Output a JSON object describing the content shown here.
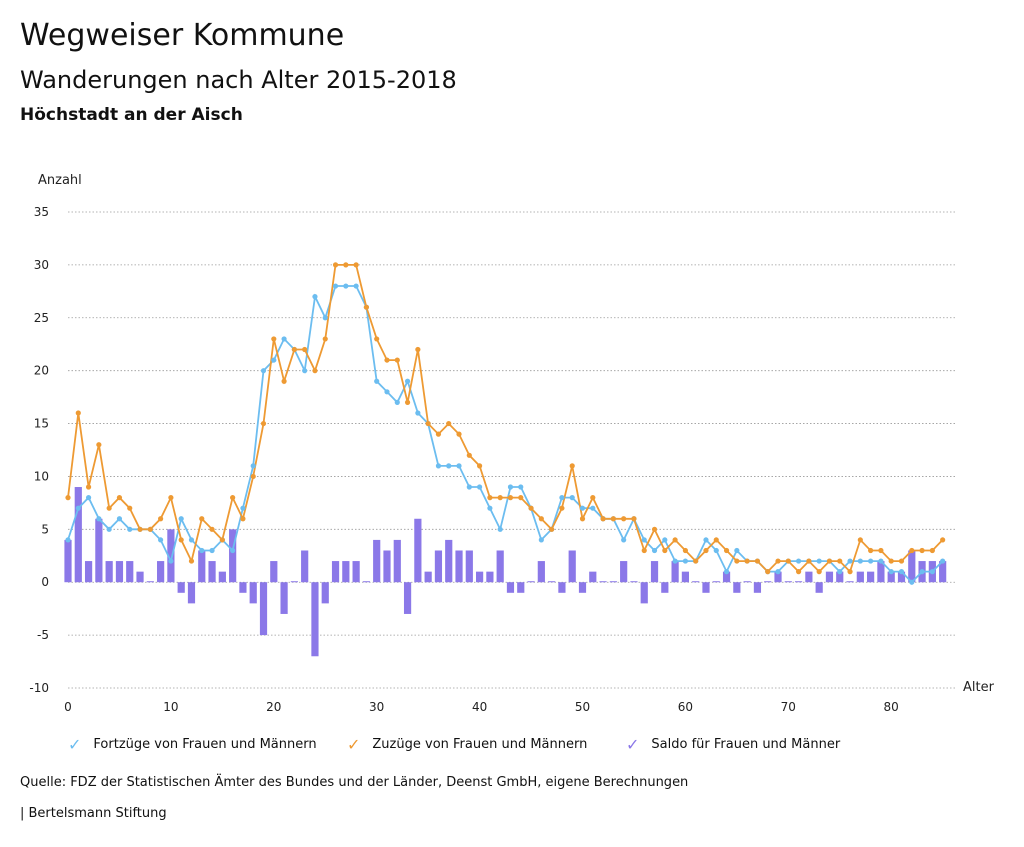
{
  "header": {
    "title": "Wegweiser Kommune",
    "subtitle": "Wanderungen nach Alter 2015-2018",
    "location": "Höchstadt an der Aisch"
  },
  "chart_data": {
    "type": "bar+line",
    "ylabel": "Anzahl",
    "xlabel": "Alter",
    "ylim": [
      -10,
      35
    ],
    "yticks": [
      -10,
      -5,
      0,
      5,
      10,
      15,
      20,
      25,
      30,
      35
    ],
    "xlim": [
      0,
      86
    ],
    "xticks": [
      0,
      10,
      20,
      30,
      40,
      50,
      60,
      70,
      80
    ],
    "x": [
      0,
      1,
      2,
      3,
      4,
      5,
      6,
      7,
      8,
      9,
      10,
      11,
      12,
      13,
      14,
      15,
      16,
      17,
      18,
      19,
      20,
      21,
      22,
      23,
      24,
      25,
      26,
      27,
      28,
      29,
      30,
      31,
      32,
      33,
      34,
      35,
      36,
      37,
      38,
      39,
      40,
      41,
      42,
      43,
      44,
      45,
      46,
      47,
      48,
      49,
      50,
      51,
      52,
      53,
      54,
      55,
      56,
      57,
      58,
      59,
      60,
      61,
      62,
      63,
      64,
      65,
      66,
      67,
      68,
      69,
      70,
      71,
      72,
      73,
      74,
      75,
      76,
      77,
      78,
      79,
      80,
      81,
      82,
      83,
      84,
      85
    ],
    "series": [
      {
        "name": "Fortzüge von Frauen und Männern",
        "type": "line",
        "color": "#6cbdf0",
        "values": [
          4,
          7,
          8,
          6,
          5,
          6,
          5,
          5,
          5,
          4,
          2,
          6,
          4,
          3,
          3,
          4,
          3,
          7,
          11,
          20,
          21,
          23,
          22,
          20,
          27,
          25,
          28,
          28,
          28,
          26,
          19,
          18,
          17,
          19,
          16,
          15,
          11,
          11,
          11,
          9,
          9,
          7,
          5,
          9,
          9,
          7,
          4,
          5,
          8,
          8,
          7,
          7,
          6,
          6,
          4,
          6,
          4,
          3,
          4,
          2,
          2,
          2,
          4,
          3,
          1,
          3,
          2,
          2,
          1,
          1,
          2,
          2,
          2,
          2,
          2,
          1,
          2,
          2,
          2,
          2,
          1,
          1,
          0,
          1,
          1,
          2
        ]
      },
      {
        "name": "Zuzüge von Frauen und Männern",
        "type": "line",
        "color": "#ee9a33",
        "values": [
          8,
          16,
          9,
          13,
          7,
          8,
          7,
          5,
          5,
          6,
          8,
          4,
          2,
          6,
          5,
          4,
          8,
          6,
          10,
          15,
          23,
          19,
          22,
          22,
          20,
          23,
          30,
          30,
          30,
          26,
          23,
          21,
          21,
          17,
          22,
          15,
          14,
          15,
          14,
          12,
          11,
          8,
          8,
          8,
          8,
          7,
          6,
          5,
          7,
          11,
          6,
          8,
          6,
          6,
          6,
          6,
          3,
          5,
          3,
          4,
          3,
          2,
          3,
          4,
          3,
          2,
          2,
          2,
          1,
          2,
          2,
          1,
          2,
          1,
          2,
          2,
          1,
          4,
          3,
          3,
          2,
          2,
          3,
          3,
          3,
          4
        ]
      },
      {
        "name": "Saldo für Frauen und Männer",
        "type": "bar",
        "color": "#8b78e8",
        "values": [
          4,
          9,
          2,
          6,
          2,
          2,
          2,
          1,
          0,
          2,
          5,
          -1,
          -2,
          3,
          2,
          1,
          5,
          -1,
          -2,
          -5,
          2,
          -3,
          0,
          3,
          -7,
          -2,
          2,
          2,
          2,
          0,
          4,
          3,
          4,
          -3,
          6,
          1,
          3,
          4,
          3,
          3,
          1,
          1,
          3,
          -1,
          -1,
          0,
          2,
          0,
          -1,
          3,
          -1,
          1,
          0,
          0,
          2,
          0,
          -2,
          2,
          -1,
          2,
          1,
          0,
          -1,
          0,
          1,
          -1,
          0,
          -1,
          0,
          1,
          0,
          0,
          1,
          -1,
          1,
          1,
          0,
          1,
          1,
          2,
          1,
          1,
          3,
          2,
          2,
          2
        ]
      }
    ]
  },
  "legend": {
    "items": [
      {
        "label": "Fortzüge von Frauen und Männern",
        "mark": "✓",
        "color": "#6cbdf0"
      },
      {
        "label": "Zuzüge von Frauen und Männern",
        "mark": "✓",
        "color": "#ee9a33"
      },
      {
        "label": "Saldo für Frauen und Männer",
        "mark": "✓",
        "color": "#8b78e8"
      }
    ]
  },
  "footer": {
    "source": "Quelle: FDZ der Statistischen Ämter des Bundes und der Länder, Deenst GmbH, eigene Berechnungen",
    "brand": "| Bertelsmann Stiftung"
  }
}
